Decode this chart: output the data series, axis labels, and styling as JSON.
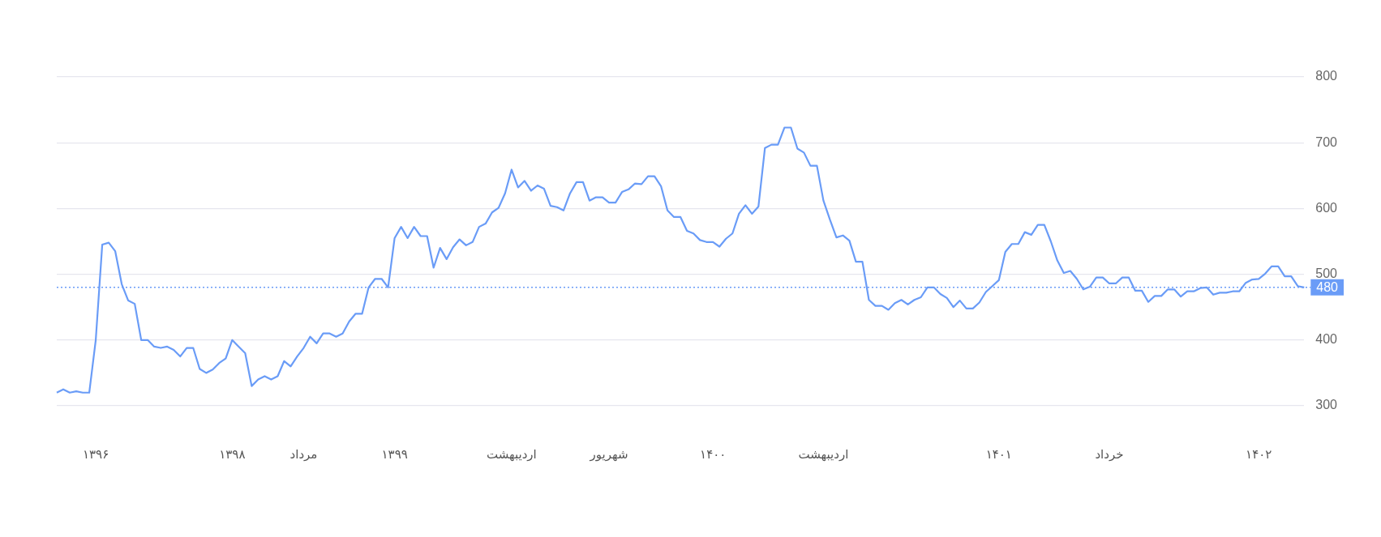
{
  "chart_data": {
    "type": "line",
    "categories": [
      null,
      null,
      null,
      null,
      null,
      null,
      "۱۳۹۶",
      null,
      null,
      null,
      null,
      null,
      null,
      null,
      null,
      null,
      null,
      null,
      null,
      null,
      null,
      null,
      null,
      null,
      null,
      null,
      null,
      "۱۳۹۸",
      null,
      null,
      null,
      null,
      null,
      null,
      null,
      null,
      null,
      null,
      "مرداد",
      null,
      null,
      null,
      null,
      null,
      null,
      null,
      null,
      null,
      null,
      null,
      null,
      null,
      "۱۳۹۹",
      null,
      null,
      null,
      null,
      null,
      null,
      null,
      null,
      null,
      null,
      null,
      null,
      null,
      null,
      null,
      null,
      null,
      "اردیبهشت",
      null,
      null,
      null,
      null,
      null,
      null,
      null,
      null,
      null,
      null,
      null,
      null,
      null,
      null,
      "شهریور",
      null,
      null,
      null,
      null,
      null,
      null,
      null,
      null,
      null,
      null,
      null,
      null,
      null,
      null,
      null,
      "۱۴۰۰",
      null,
      null,
      null,
      null,
      null,
      null,
      null,
      null,
      null,
      null,
      null,
      null,
      null,
      null,
      null,
      null,
      "اردیبهشت",
      null,
      null,
      null,
      null,
      null,
      null,
      null,
      null,
      null,
      null,
      null,
      null,
      null,
      null,
      null,
      null,
      null,
      null,
      null,
      null,
      null,
      null,
      null,
      null,
      null,
      null,
      "۱۴۰۱",
      null,
      null,
      null,
      null,
      null,
      null,
      null,
      null,
      null,
      null,
      null,
      null,
      null,
      null,
      null,
      null,
      "خرداد",
      null,
      null,
      null,
      null,
      null,
      null,
      null,
      null,
      null,
      null,
      null,
      null,
      null,
      null,
      null,
      null,
      null,
      null,
      null,
      null,
      null,
      null,
      "۱۴۰۲",
      null,
      null,
      null,
      null,
      null,
      null,
      null
    ],
    "series": [
      {
        "color": "#6a9cf7",
        "values": [
          320,
          325,
          320,
          322,
          320,
          320,
          400,
          545,
          548,
          535,
          485,
          460,
          455,
          400,
          400,
          390,
          388,
          390,
          385,
          375,
          388,
          388,
          356,
          350,
          355,
          365,
          372,
          400,
          390,
          380,
          330,
          340,
          345,
          340,
          345,
          368,
          360,
          375,
          388,
          405,
          395,
          410,
          410,
          405,
          410,
          428,
          440,
          440,
          480,
          493,
          493,
          480,
          555,
          572,
          555,
          572,
          558,
          558,
          510,
          540,
          523,
          541,
          553,
          544,
          549,
          572,
          577,
          594,
          601,
          623,
          659,
          632,
          642,
          627,
          635,
          630,
          604,
          602,
          597,
          623,
          640,
          640,
          612,
          617,
          617,
          609,
          609,
          625,
          629,
          638,
          637,
          649,
          649,
          634,
          597,
          587,
          587,
          566,
          562,
          552,
          549,
          549,
          542,
          554,
          562,
          592,
          605,
          592,
          603,
          692,
          697,
          697,
          723,
          723,
          691,
          685,
          665,
          665,
          612,
          583,
          556,
          559,
          551,
          519,
          519,
          461,
          452,
          452,
          446,
          456,
          461,
          454,
          461,
          465,
          480,
          480,
          470,
          464,
          450,
          460,
          448,
          448,
          457,
          473,
          482,
          491,
          534,
          546,
          546,
          564,
          560,
          575,
          575,
          550,
          521,
          502,
          505,
          493,
          477,
          481,
          495,
          495,
          486,
          486,
          495,
          495,
          475,
          475,
          458,
          467,
          467,
          477,
          477,
          466,
          474,
          474,
          479,
          480,
          469,
          472,
          472,
          474,
          474,
          487,
          492,
          493,
          501,
          512,
          512,
          497,
          497,
          482,
          480
        ]
      }
    ],
    "ylim": [
      300,
      800
    ],
    "yticks": [
      300,
      400,
      500,
      600,
      700,
      800
    ],
    "grid": "y",
    "ref_lines": [
      {
        "axis": "y",
        "value": 480,
        "label": "480",
        "color": "#6a9cf7",
        "line_style": "dotted"
      }
    ]
  }
}
